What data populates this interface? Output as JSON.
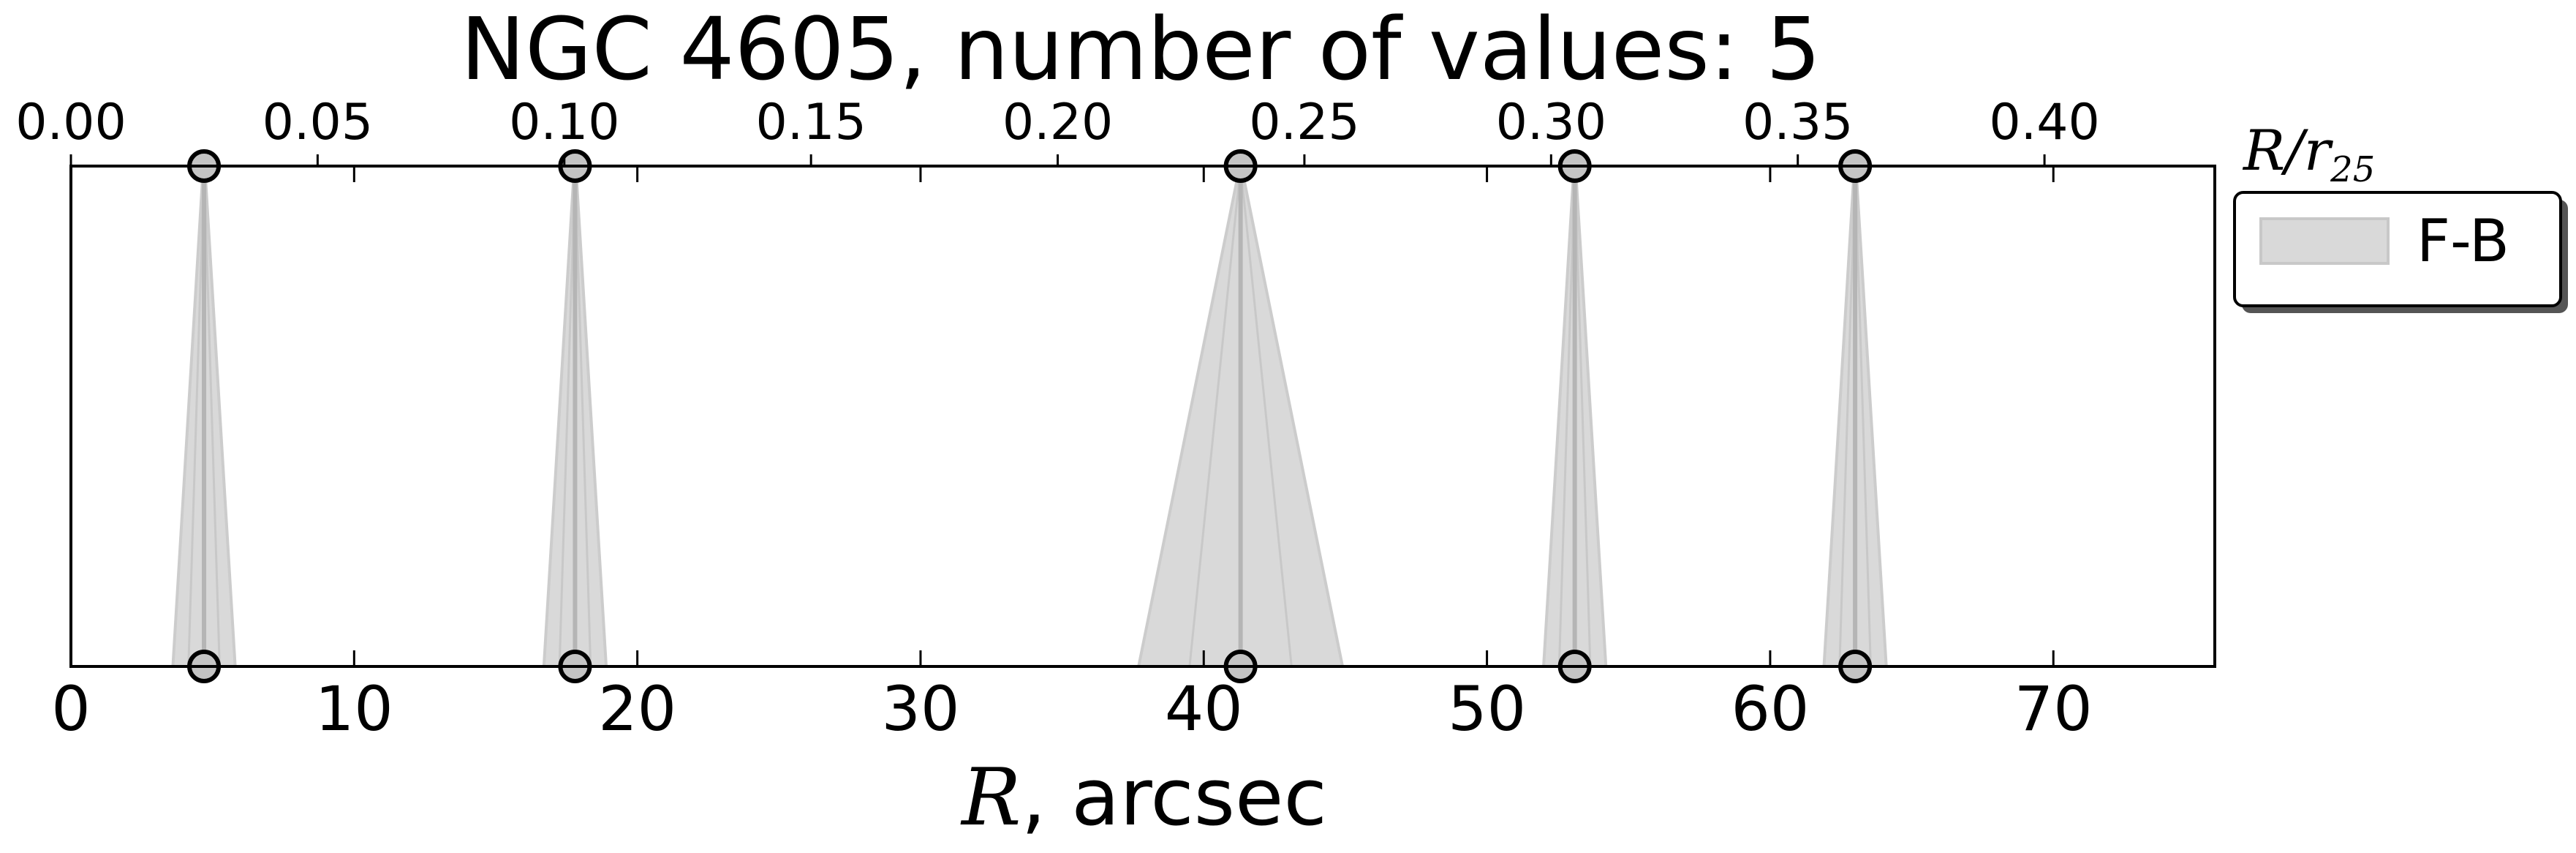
{
  "chart_data": {
    "type": "scatter",
    "title": "NGC 4605, number of values: 5",
    "xlabel": {
      "symbol": "R",
      "rest": ", arcsec"
    },
    "xlim": [
      0,
      75.7
    ],
    "xticks": [
      0,
      10,
      20,
      30,
      40,
      50,
      60,
      70
    ],
    "top_axis": {
      "label": {
        "symbol": "R/r",
        "subscript": "25"
      },
      "ticks": [
        "0.00",
        "0.05",
        "0.10",
        "0.15",
        "0.20",
        "0.25",
        "0.30",
        "0.35",
        "0.40"
      ],
      "ratio_per_arcsec": 0.00574
    },
    "ylim": [
      0,
      1
    ],
    "grid": false,
    "legend": {
      "position": "outside-right-top",
      "entries": [
        "F-B"
      ]
    },
    "series": [
      {
        "name": "F-B",
        "color": "#d9d9d9",
        "points": [
          {
            "r": 4.7,
            "err": 1.1
          },
          {
            "r": 17.8,
            "err": 1.1
          },
          {
            "r": 41.3,
            "err": 3.6
          },
          {
            "r": 53.1,
            "err": 1.1
          },
          {
            "r": 63.0,
            "err": 1.1
          }
        ]
      }
    ]
  }
}
